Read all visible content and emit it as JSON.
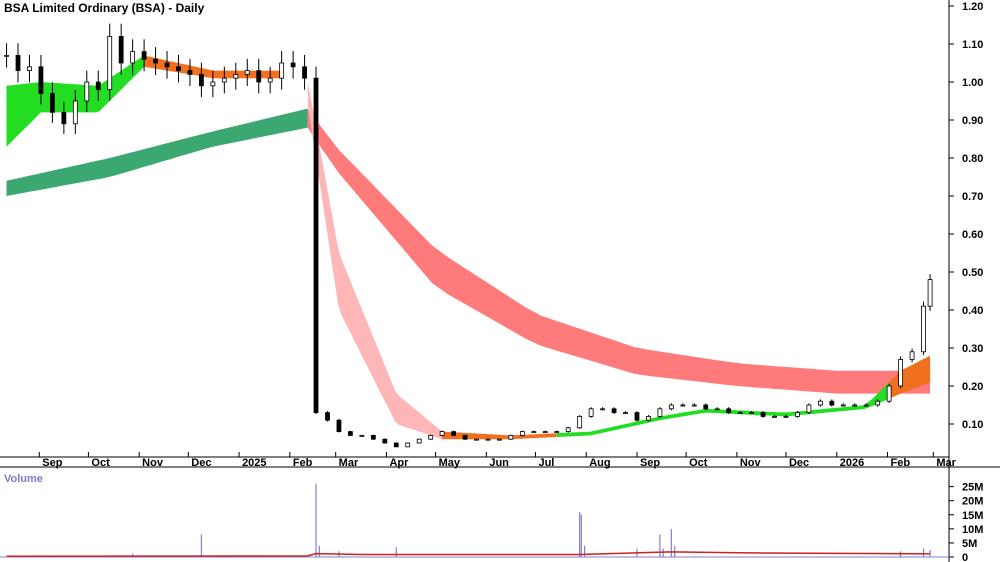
{
  "chart_data": {
    "type": "candlestick",
    "title": "BSA Limited Ordinary (BSA) - Daily",
    "y_axis": {
      "ticks": [
        "1.20",
        "1.10",
        "1.00",
        "0.90",
        "0.80",
        "0.70",
        "0.60",
        "0.50",
        "0.40",
        "0.30",
        "0.20",
        "0.10"
      ],
      "ylim": [
        0.0,
        1.2
      ]
    },
    "x_axis": {
      "ticks": [
        "Sep",
        "Oct",
        "Nov",
        "Dec",
        "2025",
        "Feb",
        "Mar",
        "Apr",
        "May",
        "Jun",
        "Jul",
        "Aug",
        "Sep",
        "Oct",
        "Nov",
        "Dec",
        "2026",
        "Feb",
        "Mar"
      ]
    },
    "price_series": {
      "name": "Close",
      "points": [
        [
          "2024-08-12",
          1.07
        ],
        [
          "2024-08-19",
          1.03
        ],
        [
          "2024-08-26",
          1.04
        ],
        [
          "2024-09-02",
          0.97
        ],
        [
          "2024-09-09",
          0.92
        ],
        [
          "2024-09-16",
          0.89
        ],
        [
          "2024-09-23",
          0.95
        ],
        [
          "2024-09-30",
          1.0
        ],
        [
          "2024-10-07",
          0.98
        ],
        [
          "2024-10-14",
          1.12
        ],
        [
          "2024-10-21",
          1.05
        ],
        [
          "2024-10-28",
          1.08
        ],
        [
          "2024-11-04",
          1.06
        ],
        [
          "2024-11-11",
          1.05
        ],
        [
          "2024-11-18",
          1.04
        ],
        [
          "2024-11-25",
          1.03
        ],
        [
          "2024-12-02",
          1.02
        ],
        [
          "2024-12-09",
          0.99
        ],
        [
          "2024-12-16",
          1.0
        ],
        [
          "2024-12-23",
          1.01
        ],
        [
          "2024-12-30",
          1.02
        ],
        [
          "2025-01-06",
          1.03
        ],
        [
          "2025-01-13",
          1.0
        ],
        [
          "2025-01-20",
          1.01
        ],
        [
          "2025-01-27",
          1.05
        ],
        [
          "2025-02-03",
          1.04
        ],
        [
          "2025-02-10",
          1.01
        ],
        [
          "2025-02-17",
          0.13
        ],
        [
          "2025-02-24",
          0.11
        ],
        [
          "2025-03-03",
          0.08
        ],
        [
          "2025-03-10",
          0.07
        ],
        [
          "2025-03-17",
          0.07
        ],
        [
          "2025-03-24",
          0.06
        ],
        [
          "2025-03-31",
          0.05
        ],
        [
          "2025-04-07",
          0.04
        ],
        [
          "2025-04-14",
          0.05
        ],
        [
          "2025-04-21",
          0.06
        ],
        [
          "2025-04-28",
          0.07
        ],
        [
          "2025-05-05",
          0.08
        ],
        [
          "2025-05-12",
          0.07
        ],
        [
          "2025-05-19",
          0.06
        ],
        [
          "2025-05-26",
          0.06
        ],
        [
          "2025-06-02",
          0.06
        ],
        [
          "2025-06-09",
          0.06
        ],
        [
          "2025-06-16",
          0.07
        ],
        [
          "2025-06-23",
          0.08
        ],
        [
          "2025-06-30",
          0.08
        ],
        [
          "2025-07-07",
          0.08
        ],
        [
          "2025-07-14",
          0.08
        ],
        [
          "2025-07-21",
          0.09
        ],
        [
          "2025-07-28",
          0.12
        ],
        [
          "2025-08-04",
          0.14
        ],
        [
          "2025-08-11",
          0.14
        ],
        [
          "2025-08-18",
          0.13
        ],
        [
          "2025-08-25",
          0.13
        ],
        [
          "2025-09-01",
          0.11
        ],
        [
          "2025-09-08",
          0.12
        ],
        [
          "2025-09-15",
          0.14
        ],
        [
          "2025-09-22",
          0.15
        ],
        [
          "2025-09-29",
          0.15
        ],
        [
          "2025-10-06",
          0.15
        ],
        [
          "2025-10-13",
          0.14
        ],
        [
          "2025-10-20",
          0.14
        ],
        [
          "2025-10-27",
          0.13
        ],
        [
          "2025-11-03",
          0.13
        ],
        [
          "2025-11-10",
          0.13
        ],
        [
          "2025-11-17",
          0.12
        ],
        [
          "2025-11-24",
          0.12
        ],
        [
          "2025-12-01",
          0.12
        ],
        [
          "2025-12-08",
          0.13
        ],
        [
          "2025-12-15",
          0.15
        ],
        [
          "2025-12-22",
          0.16
        ],
        [
          "2025-12-29",
          0.15
        ],
        [
          "2026-01-05",
          0.15
        ],
        [
          "2026-01-12",
          0.15
        ],
        [
          "2026-01-19",
          0.15
        ],
        [
          "2026-01-26",
          0.16
        ],
        [
          "2026-02-02",
          0.2
        ],
        [
          "2026-02-09",
          0.27
        ],
        [
          "2026-02-16",
          0.29
        ],
        [
          "2026-02-23",
          0.41
        ],
        [
          "2026-02-27",
          0.48
        ]
      ],
      "color": "#000000"
    },
    "bands": [
      {
        "kind": "long-term",
        "upper": [
          [
            "2024-08-12",
            0.74
          ],
          [
            "2024-10-14",
            0.8
          ],
          [
            "2024-12-16",
            0.87
          ],
          [
            "2025-02-12",
            0.93
          ],
          [
            "2025-03-01",
            0.83
          ],
          [
            "2025-05-01",
            0.56
          ],
          [
            "2025-07-01",
            0.39
          ],
          [
            "2025-09-01",
            0.3
          ],
          [
            "2025-11-01",
            0.26
          ],
          [
            "2026-01-01",
            0.24
          ],
          [
            "2026-02-27",
            0.24
          ]
        ],
        "lower": [
          [
            "2024-08-12",
            0.7
          ],
          [
            "2024-10-14",
            0.75
          ],
          [
            "2024-12-16",
            0.83
          ],
          [
            "2025-02-12",
            0.88
          ],
          [
            "2025-03-01",
            0.77
          ],
          [
            "2025-05-01",
            0.46
          ],
          [
            "2025-07-01",
            0.31
          ],
          [
            "2025-09-01",
            0.23
          ],
          [
            "2025-11-01",
            0.2
          ],
          [
            "2026-01-01",
            0.18
          ],
          [
            "2026-02-27",
            0.18
          ]
        ],
        "colors": {
          "up": "#3aa870",
          "down": "#ff7b7b"
        },
        "turn_date": "2025-02-12"
      },
      {
        "kind": "short-term",
        "upper": [
          [
            "2024-08-12",
            0.99
          ],
          [
            "2024-09-02",
            1.0
          ],
          [
            "2024-10-07",
            0.99
          ],
          [
            "2024-11-04",
            1.07
          ],
          [
            "2024-12-16",
            1.03
          ],
          [
            "2025-01-27",
            1.03
          ],
          [
            "2025-02-12",
            1.0
          ],
          [
            "2025-03-03",
            0.55
          ],
          [
            "2025-04-07",
            0.18
          ],
          [
            "2025-05-05",
            0.08
          ],
          [
            "2025-06-16",
            0.07
          ],
          [
            "2025-08-04",
            0.08
          ],
          [
            "2025-09-15",
            0.12
          ],
          [
            "2025-10-13",
            0.14
          ],
          [
            "2025-12-01",
            0.13
          ],
          [
            "2026-01-19",
            0.15
          ],
          [
            "2026-02-09",
            0.24
          ],
          [
            "2026-02-27",
            0.28
          ]
        ],
        "lower": [
          [
            "2024-08-12",
            0.83
          ],
          [
            "2024-09-02",
            0.92
          ],
          [
            "2024-10-07",
            0.92
          ],
          [
            "2024-11-04",
            1.04
          ],
          [
            "2024-12-16",
            1.01
          ],
          [
            "2025-01-27",
            1.01
          ],
          [
            "2025-02-12",
            0.94
          ],
          [
            "2025-03-03",
            0.4
          ],
          [
            "2025-04-07",
            0.1
          ],
          [
            "2025-05-05",
            0.06
          ],
          [
            "2025-06-16",
            0.06
          ],
          [
            "2025-08-04",
            0.07
          ],
          [
            "2025-09-15",
            0.11
          ],
          [
            "2025-10-13",
            0.13
          ],
          [
            "2025-12-01",
            0.12
          ],
          [
            "2026-01-19",
            0.14
          ],
          [
            "2026-02-09",
            0.18
          ],
          [
            "2026-02-27",
            0.21
          ]
        ],
        "colors": {
          "up": "#22dd22",
          "down": "#ffb6b6",
          "transition": "#f07020"
        }
      }
    ],
    "volume": {
      "label": "Volume",
      "ticks": [
        "25M",
        "20M",
        "15M",
        "10M",
        "5M",
        "0"
      ],
      "ylim": [
        0,
        27000000
      ],
      "bar_color": "#8080cc",
      "avg_color": "#d22020",
      "bars": [
        [
          "2024-10-28",
          1200000
        ],
        [
          "2024-12-09",
          8000000
        ],
        [
          "2025-02-17",
          26000000
        ],
        [
          "2025-02-19",
          4000000
        ],
        [
          "2025-03-03",
          2000000
        ],
        [
          "2025-04-07",
          3500000
        ],
        [
          "2025-07-28",
          16000000
        ],
        [
          "2025-07-29",
          15000000
        ],
        [
          "2025-07-31",
          4000000
        ],
        [
          "2025-09-01",
          3000000
        ],
        [
          "2025-09-15",
          8000000
        ],
        [
          "2025-09-17",
          3000000
        ],
        [
          "2025-09-22",
          10000000
        ],
        [
          "2025-09-24",
          4000000
        ],
        [
          "2026-02-09",
          2000000
        ],
        [
          "2026-02-23",
          3000000
        ],
        [
          "2026-02-27",
          2500000
        ]
      ],
      "average": [
        [
          "2024-08-12",
          300000
        ],
        [
          "2025-02-12",
          400000
        ],
        [
          "2025-02-17",
          1200000
        ],
        [
          "2025-03-17",
          900000
        ],
        [
          "2025-07-28",
          900000
        ],
        [
          "2025-09-22",
          1800000
        ],
        [
          "2025-11-01",
          1500000
        ],
        [
          "2026-02-27",
          1100000
        ]
      ]
    }
  }
}
